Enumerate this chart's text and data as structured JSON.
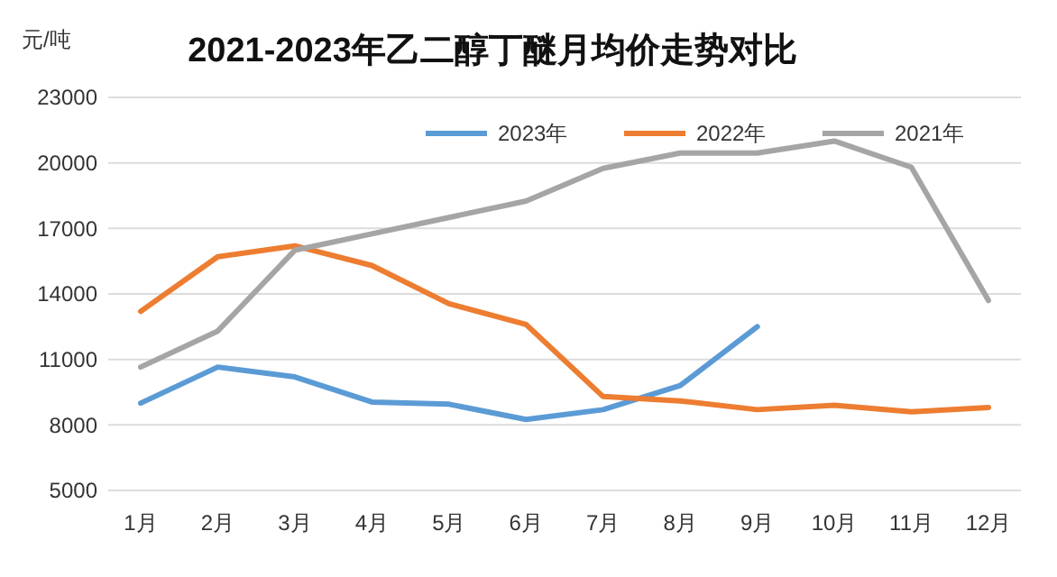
{
  "chart_data": {
    "type": "line",
    "title": "2021-2023年乙二醇丁醚月均价走势对比",
    "ylabel": "元/吨",
    "categories": [
      "1月",
      "2月",
      "3月",
      "4月",
      "5月",
      "6月",
      "7月",
      "8月",
      "9月",
      "10月",
      "11月",
      "12月"
    ],
    "series": [
      {
        "name": "2023年",
        "color": "#5b9bd5",
        "values": [
          9000,
          10650,
          10200,
          9050,
          8950,
          8250,
          8700,
          9800,
          12500,
          null,
          null,
          null
        ]
      },
      {
        "name": "2022年",
        "color": "#ed7d31",
        "values": [
          13200,
          15700,
          16200,
          15300,
          13550,
          12600,
          9300,
          9100,
          8700,
          8900,
          8600,
          8800
        ]
      },
      {
        "name": "2021年",
        "color": "#a5a5a5",
        "values": [
          10650,
          12300,
          16000,
          16750,
          17500,
          18250,
          19750,
          20450,
          20450,
          21000,
          19800,
          13700
        ]
      }
    ],
    "ylim": [
      5000,
      23000
    ],
    "yticks": [
      5000,
      8000,
      11000,
      14000,
      17000,
      20000,
      23000
    ],
    "grid": "y",
    "legend": "top right",
    "marker": "none",
    "line_style": "solid"
  }
}
